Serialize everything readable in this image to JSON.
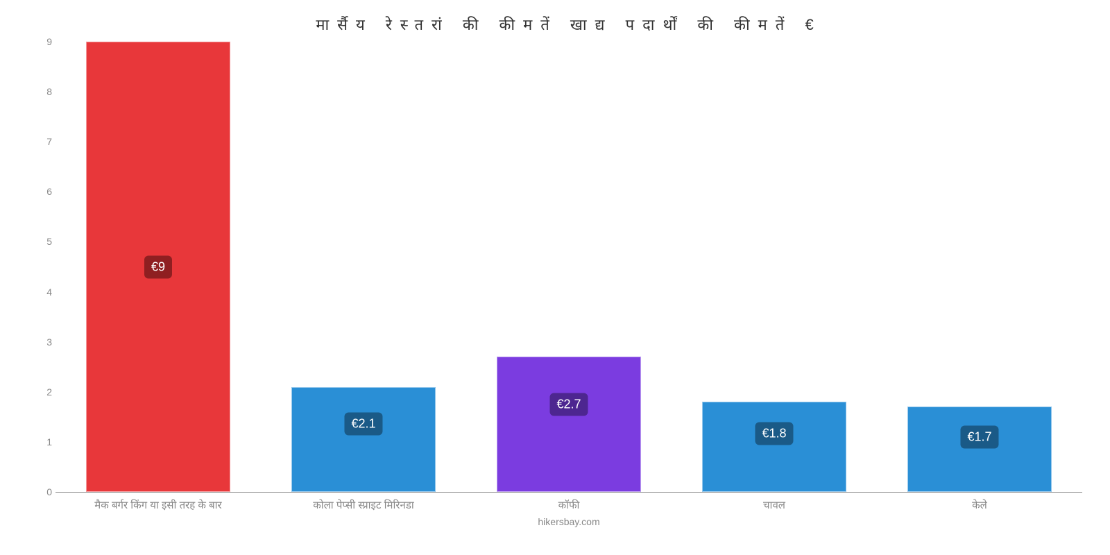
{
  "chart": {
    "type": "bar",
    "title": "मार्सैय रेस्तरां की कीमतें खाद्य पदार्थों की कीमतें €",
    "title_fontsize": 22,
    "title_color": "#333333",
    "background_color": "#ffffff",
    "ylim": [
      0,
      9
    ],
    "ytick_step": 1,
    "yticks": [
      "0",
      "1",
      "2",
      "3",
      "4",
      "5",
      "6",
      "7",
      "8",
      "9"
    ],
    "axis_color": "#888888",
    "label_fontsize": 15,
    "value_label_fontsize": 18,
    "bar_width": 0.7,
    "categories": [
      "मैक बर्गर किंग या इसी तरह के बार",
      "कोला पेप्सी स्प्राइट मिरिनडा",
      "कॉफी",
      "चावल",
      "केले"
    ],
    "values": [
      9,
      2.1,
      2.7,
      1.8,
      1.7
    ],
    "value_labels": [
      "€9",
      "€2.1",
      "€2.7",
      "€1.8",
      "€1.7"
    ],
    "bar_colors": [
      "#e8373a",
      "#2a8fd6",
      "#7b3ce0",
      "#2a8fd6",
      "#2a8fd6"
    ],
    "value_label_bg": [
      "#8f1f21",
      "#1a5a87",
      "#4d2690",
      "#1a5a87",
      "#1a5a87"
    ],
    "value_label_y_offset": [
      0.5,
      0.35,
      0.35,
      0.35,
      0.35
    ],
    "attribution": "hikersbay.com",
    "attribution_color": "#888888"
  }
}
